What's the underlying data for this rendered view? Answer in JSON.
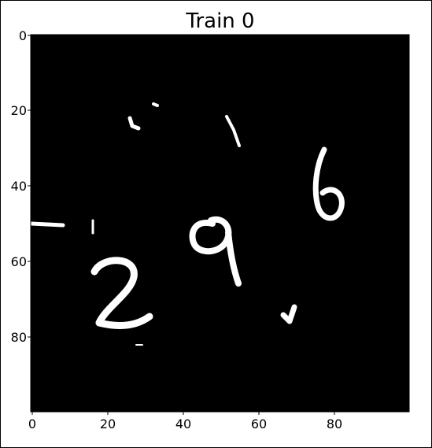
{
  "figure": {
    "title": "Train 0"
  },
  "axes": {
    "x_ticks": [
      "0",
      "20",
      "40",
      "60",
      "80"
    ],
    "y_ticks": [
      "0",
      "20",
      "40",
      "60",
      "80"
    ],
    "xlim": [
      0,
      100
    ],
    "ylim": [
      0,
      100
    ]
  },
  "image": {
    "background_color": "#000000",
    "digit_color": "#ffffff",
    "visible_digits": [
      "6",
      "9",
      "2"
    ]
  }
}
